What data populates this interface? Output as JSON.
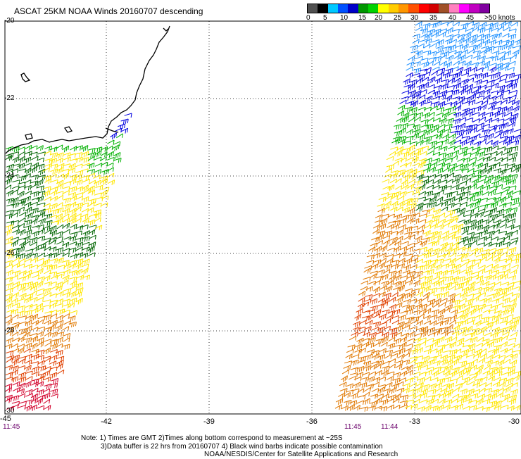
{
  "title": "ASCAT 25KM NOAA Winds 20160707 descending",
  "legend": {
    "labels": [
      "0",
      "5",
      "10",
      "15",
      "20",
      "25",
      "30",
      "35",
      "40",
      "45",
      ">50 knots"
    ],
    "colors": [
      "#505050",
      "#000000",
      "#00c8ff",
      "#0050ff",
      "#0000c8",
      "#009600",
      "#00d200",
      "#ffff00",
      "#ffcc00",
      "#ff9600",
      "#ff5000",
      "#ff0000",
      "#d20000",
      "#a05028",
      "#ff80c0",
      "#ff00ff",
      "#c000c0",
      "#8000a0"
    ]
  },
  "axes": {
    "lat_labels": [
      "-20",
      "-22",
      "-24",
      "-26",
      "-28",
      "-30"
    ],
    "lon_labels": [
      "-42",
      "-39",
      "-36",
      "-33",
      "-30"
    ],
    "corner_lon_label": "-45"
  },
  "times": {
    "left": "11:45",
    "right_a": "11:45",
    "right_b": "11:44"
  },
  "footer": {
    "line1": "Note: 1) Times are GMT 2)Times along bottom correspond to measurement at ~25S",
    "line2": "3)Data buffer is 22 hrs from 20160707 4) Black wind barbs indicate possible contamination",
    "line3": "NOAA/NESDIS/Center for Satellite Applications and Research"
  },
  "wind_color_key": {
    "blue": "#0000e0",
    "lightblue": "#1e90ff",
    "green": "#00b000",
    "darkgreen": "#006400",
    "yellow": "#ffe600",
    "orange": "#e07800",
    "redorange": "#e04000",
    "red": "#d2002a"
  }
}
